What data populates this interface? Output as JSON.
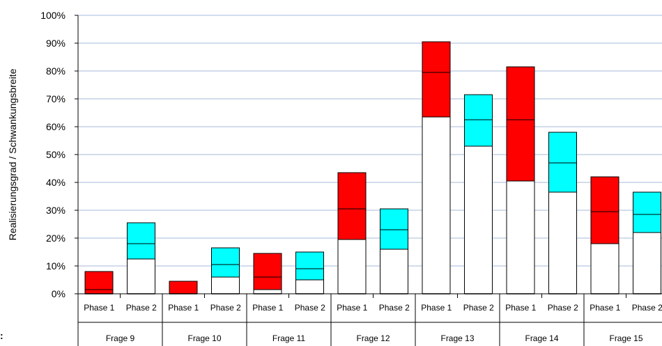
{
  "chart_data": {
    "type": "bar",
    "subtype": "floating-range-with-median",
    "ylabel": "Realisierungsgrad / Schwankungsbreite",
    "ylim": [
      0,
      100
    ],
    "yticks": [
      "0%",
      "10%",
      "20%",
      "30%",
      "40%",
      "50%",
      "60%",
      "70%",
      "80%",
      "90%",
      "100%"
    ],
    "grid": true,
    "groups": [
      "Frage 9",
      "Frage 10",
      "Frage 11",
      "Frage 12",
      "Frage 13",
      "Frage 14",
      "Frage 15"
    ],
    "phases": [
      "Phase 1",
      "Phase 2"
    ],
    "series": [
      {
        "name": "Phase 1",
        "color": "#ff0000",
        "low": [
          0,
          0,
          1.5,
          19.5,
          63.5,
          40.5,
          18
        ],
        "mid": [
          1.5,
          0,
          6,
          30.5,
          79.5,
          62.5,
          29.5
        ],
        "high": [
          8,
          4.5,
          14.5,
          43.5,
          90.5,
          81.5,
          42
        ]
      },
      {
        "name": "Phase 2",
        "color": "#00ffff",
        "low": [
          12.5,
          6,
          5,
          16,
          53,
          36.5,
          22
        ],
        "mid": [
          18,
          10.5,
          9,
          23,
          62.5,
          47,
          28.5
        ],
        "high": [
          25.5,
          16.5,
          15,
          30.5,
          71.5,
          58,
          36.5
        ]
      }
    ]
  },
  "stray_label": ":"
}
